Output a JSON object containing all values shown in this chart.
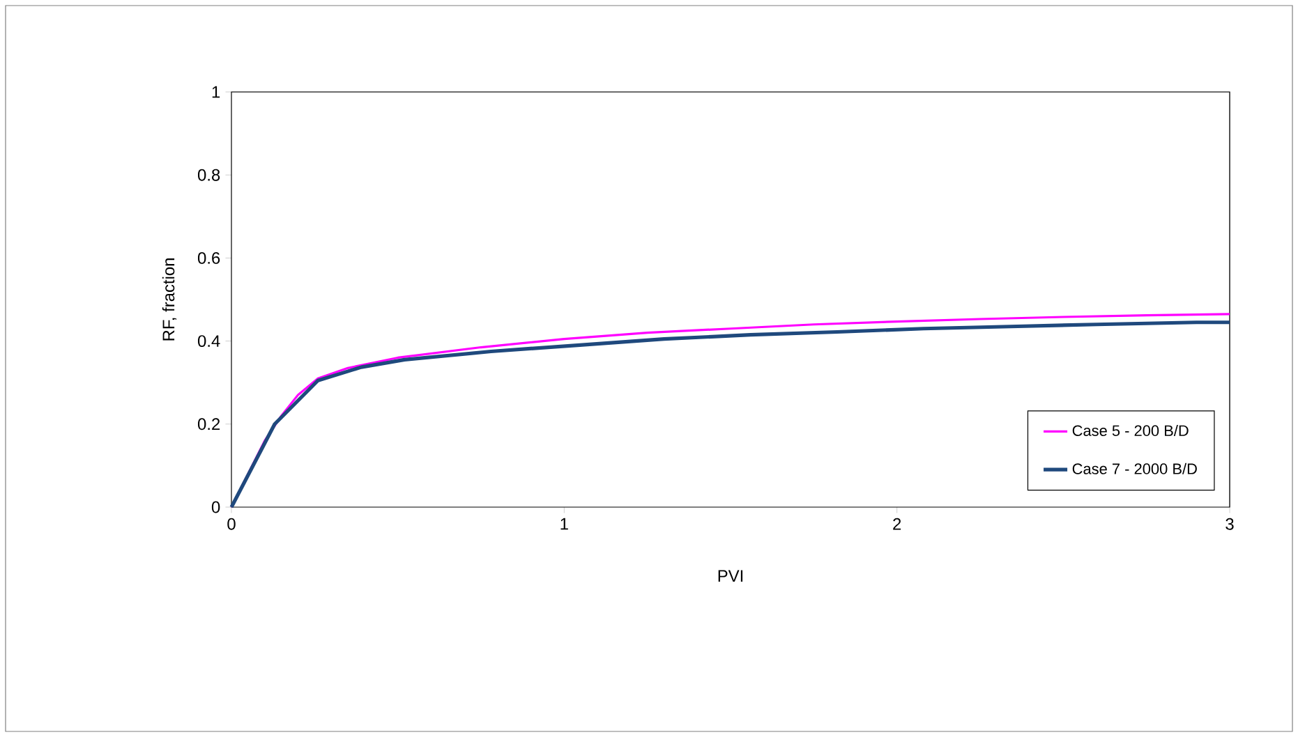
{
  "chart_data": {
    "type": "line",
    "xlabel": "PVI",
    "ylabel": "RF, fraction",
    "xlim": [
      0,
      3
    ],
    "ylim": [
      0,
      1
    ],
    "xticks": [
      0,
      1,
      2,
      3
    ],
    "yticks": [
      0,
      0.2,
      0.4,
      0.6,
      0.8,
      1
    ],
    "legend": "bottom right",
    "grid": false,
    "marker": "none",
    "line_style": "solid",
    "series": [
      {
        "name": "Case 5 - 200 B/D",
        "color": "#ff00ff",
        "x": [
          0,
          0.1,
          0.15,
          0.2,
          0.26,
          0.35,
          0.5,
          0.75,
          1,
          1.25,
          1.5,
          1.75,
          2,
          2.25,
          2.5,
          2.75,
          3
        ],
        "values": [
          0,
          0.16,
          0.22,
          0.27,
          0.31,
          0.335,
          0.36,
          0.385,
          0.405,
          0.42,
          0.43,
          0.44,
          0.447,
          0.453,
          0.458,
          0.462,
          0.465
        ]
      },
      {
        "name": "Case 7 - 2000 B/D",
        "color": "#1f497d",
        "x": [
          0,
          0.13,
          0.26,
          0.39,
          0.52,
          0.78,
          1.04,
          1.3,
          1.56,
          1.82,
          2.08,
          2.34,
          2.6,
          2.9,
          3
        ],
        "values": [
          0,
          0.2,
          0.305,
          0.337,
          0.355,
          0.375,
          0.39,
          0.405,
          0.415,
          0.422,
          0.43,
          0.435,
          0.44,
          0.445,
          0.445
        ]
      }
    ]
  }
}
